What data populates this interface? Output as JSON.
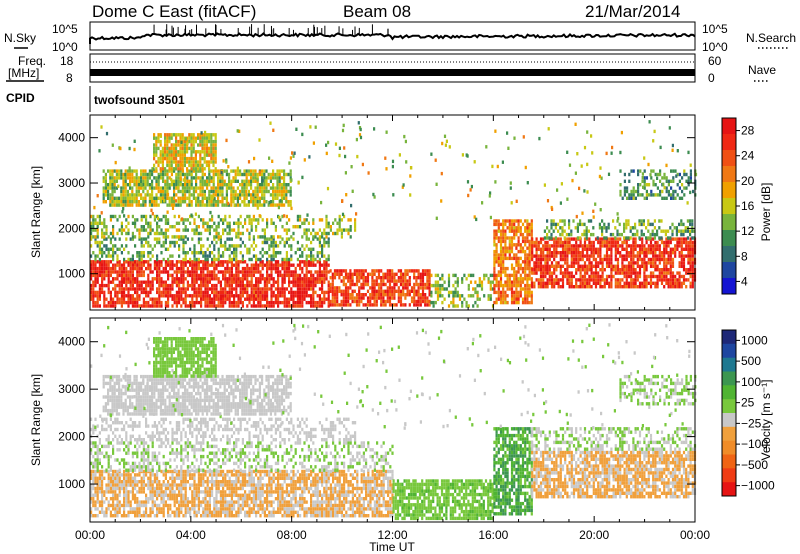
{
  "header": {
    "station": "Dome C East (fitACF)",
    "beam": "Beam 08",
    "date": "21/Mar/2014"
  },
  "colors": {
    "frame": "#000000",
    "power_scale": [
      "#1414d2",
      "#1e46a0",
      "#326e6e",
      "#3c8c50",
      "#78b43c",
      "#c8c814",
      "#f0a000",
      "#f07814",
      "#f05014",
      "#f02814",
      "#e61414"
    ],
    "velocity_scale": [
      "#1e2878",
      "#1e46a0",
      "#1e7890",
      "#3c9650",
      "#50b432",
      "#78c83c",
      "#c8c8c8",
      "#f0a03c",
      "#f08c28",
      "#f06414",
      "#f03c14",
      "#e61414"
    ]
  },
  "panels": {
    "nsky": {
      "label": "N.Sky",
      "right_label": "N.Search",
      "left_ticks": [
        "10^5",
        "10^0"
      ],
      "right_ticks": [
        "10^5",
        "10^0"
      ]
    },
    "freq": {
      "label": "Freq.",
      "unit": "[MHz]",
      "left_ticks": [
        "18",
        "8"
      ],
      "right_label": "Nave",
      "right_ticks": [
        "60",
        "0"
      ]
    },
    "cpid": {
      "label": "CPID",
      "program": "twofsound 3501"
    }
  },
  "chart_data": [
    {
      "type": "heatmap",
      "name": "power",
      "ylabel": "Slant Range [km]",
      "xlabel": "",
      "ylim": [
        200,
        4500
      ],
      "yticks": [
        "4000",
        "3000",
        "2000",
        "1000"
      ],
      "xticks": [
        "00:00",
        "04:00",
        "08:00",
        "12:00",
        "16:00",
        "20:00",
        "00:00"
      ],
      "colorbar": {
        "label": "Power [dB]",
        "ticks": [
          "28",
          "24",
          "20",
          "16",
          "12",
          "8",
          "4"
        ],
        "range": [
          0,
          32
        ]
      },
      "bands": [
        {
          "t0": 0.0,
          "t1": 9.5,
          "r0": 300,
          "r1": 1300,
          "value": 28
        },
        {
          "t0": 9.5,
          "t1": 13.5,
          "r0": 300,
          "r1": 1100,
          "value": 26
        },
        {
          "t0": 0.0,
          "t1": 9.5,
          "r0": 1300,
          "r1": 1800,
          "value": 12
        },
        {
          "t0": 0.0,
          "t1": 10.5,
          "r0": 1800,
          "r1": 2300,
          "value": 14
        },
        {
          "t0": 0.5,
          "t1": 8.0,
          "r0": 2500,
          "r1": 3300,
          "value": 15
        },
        {
          "t0": 2.5,
          "t1": 5.0,
          "r0": 3300,
          "r1": 4100,
          "value": 17
        },
        {
          "t0": 13.5,
          "t1": 16.0,
          "r0": 300,
          "r1": 1000,
          "value": 14
        },
        {
          "t0": 16.0,
          "t1": 17.5,
          "r0": 400,
          "r1": 2200,
          "value": 22
        },
        {
          "t0": 17.5,
          "t1": 24.0,
          "r0": 700,
          "r1": 1800,
          "value": 27
        },
        {
          "t0": 18.0,
          "t1": 24.0,
          "r0": 1800,
          "r1": 2200,
          "value": 12
        },
        {
          "t0": 21.0,
          "t1": 24.0,
          "r0": 2700,
          "r1": 3300,
          "value": 10
        }
      ]
    },
    {
      "type": "heatmap",
      "name": "velocity",
      "ylabel": "Slant Range [km]",
      "xlabel": "Time UT",
      "ylim": [
        200,
        4500
      ],
      "yticks": [
        "4000",
        "3000",
        "2000",
        "1000"
      ],
      "xticks": [
        "00:00",
        "04:00",
        "08:00",
        "12:00",
        "16:00",
        "20:00",
        "00:00"
      ],
      "colorbar": {
        "label": "Velocity [m s⁻¹]",
        "ticks": [
          "1000",
          "500",
          "100",
          "25",
          "−25",
          "−100",
          "−500",
          "−1000"
        ],
        "range": [
          -1000,
          1000
        ]
      },
      "bands": [
        {
          "t0": 0.0,
          "t1": 12.0,
          "r0": 300,
          "r1": 1300,
          "value": -200
        },
        {
          "t0": 0.0,
          "t1": 12.0,
          "r0": 1300,
          "r1": 1900,
          "value": 0
        },
        {
          "t0": 0.0,
          "t1": 10.5,
          "r0": 1900,
          "r1": 2400,
          "value": -80
        },
        {
          "t0": 0.5,
          "t1": 8.0,
          "r0": 2500,
          "r1": 3300,
          "value": -50
        },
        {
          "t0": 2.5,
          "t1": 5.0,
          "r0": 3300,
          "r1": 4100,
          "value": 60
        },
        {
          "t0": 12.0,
          "t1": 16.0,
          "r0": 300,
          "r1": 1100,
          "value": 120
        },
        {
          "t0": 16.0,
          "t1": 17.5,
          "r0": 400,
          "r1": 2200,
          "value": 300
        },
        {
          "t0": 17.5,
          "t1": 24.0,
          "r0": 700,
          "r1": 1700,
          "value": -200
        },
        {
          "t0": 17.5,
          "t1": 24.0,
          "r0": 1700,
          "r1": 2200,
          "value": 0
        },
        {
          "t0": 21.0,
          "t1": 24.0,
          "r0": 2700,
          "r1": 3300,
          "value": 10
        }
      ]
    }
  ]
}
